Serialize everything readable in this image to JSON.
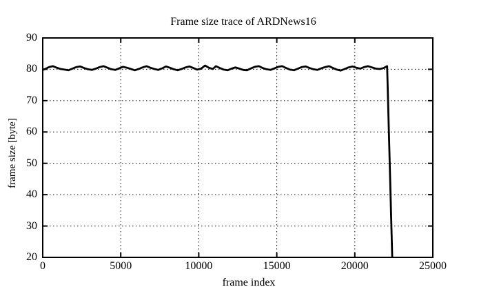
{
  "chart_data": {
    "type": "line",
    "title": "Frame size trace of ARDNews16",
    "xlabel": "frame index",
    "ylabel": "frame size [byte]",
    "xlim": [
      0,
      25000
    ],
    "ylim": [
      20,
      90
    ],
    "xticks": [
      0,
      5000,
      10000,
      15000,
      20000,
      25000
    ],
    "yticks": [
      20,
      30,
      40,
      50,
      60,
      70,
      80,
      90
    ],
    "grid": true,
    "legend": false,
    "line_color": "#000000",
    "grid_color": "#000000",
    "background": "#ffffff",
    "series": [
      {
        "name": "frame size",
        "points": [
          [
            0,
            79.8
          ],
          [
            150,
            80.1
          ],
          [
            400,
            80.7
          ],
          [
            650,
            81.0
          ],
          [
            900,
            80.5
          ],
          [
            1150,
            80.1
          ],
          [
            1400,
            79.9
          ],
          [
            1650,
            79.7
          ],
          [
            1900,
            80.2
          ],
          [
            2150,
            80.7
          ],
          [
            2400,
            80.9
          ],
          [
            2650,
            80.4
          ],
          [
            2900,
            80.0
          ],
          [
            3150,
            79.8
          ],
          [
            3400,
            80.2
          ],
          [
            3650,
            80.7
          ],
          [
            3900,
            81.0
          ],
          [
            4150,
            80.5
          ],
          [
            4400,
            80.0
          ],
          [
            4650,
            79.8
          ],
          [
            4900,
            80.3
          ],
          [
            5150,
            80.8
          ],
          [
            5400,
            80.5
          ],
          [
            5650,
            80.1
          ],
          [
            5900,
            79.7
          ],
          [
            6150,
            80.1
          ],
          [
            6400,
            80.6
          ],
          [
            6650,
            81.0
          ],
          [
            6900,
            80.5
          ],
          [
            7150,
            80.1
          ],
          [
            7400,
            79.8
          ],
          [
            7650,
            80.3
          ],
          [
            7900,
            80.9
          ],
          [
            8150,
            80.5
          ],
          [
            8400,
            80.0
          ],
          [
            8650,
            79.7
          ],
          [
            8900,
            80.1
          ],
          [
            9150,
            80.6
          ],
          [
            9400,
            80.9
          ],
          [
            9650,
            80.4
          ],
          [
            9900,
            79.9
          ],
          [
            10150,
            80.2
          ],
          [
            10400,
            81.2
          ],
          [
            10650,
            80.5
          ],
          [
            10900,
            80.1
          ],
          [
            11100,
            81.0
          ],
          [
            11350,
            80.4
          ],
          [
            11600,
            79.9
          ],
          [
            11850,
            79.7
          ],
          [
            12100,
            80.2
          ],
          [
            12350,
            80.6
          ],
          [
            12600,
            80.2
          ],
          [
            12850,
            79.8
          ],
          [
            13100,
            79.7
          ],
          [
            13350,
            80.3
          ],
          [
            13600,
            80.8
          ],
          [
            13850,
            81.0
          ],
          [
            14100,
            80.4
          ],
          [
            14350,
            80.0
          ],
          [
            14600,
            79.8
          ],
          [
            14850,
            80.3
          ],
          [
            15100,
            80.8
          ],
          [
            15350,
            81.0
          ],
          [
            15600,
            80.4
          ],
          [
            15850,
            79.9
          ],
          [
            16100,
            79.7
          ],
          [
            16350,
            80.2
          ],
          [
            16600,
            80.7
          ],
          [
            16850,
            80.9
          ],
          [
            17100,
            80.4
          ],
          [
            17350,
            80.0
          ],
          [
            17600,
            79.8
          ],
          [
            17850,
            80.3
          ],
          [
            18100,
            80.7
          ],
          [
            18350,
            81.0
          ],
          [
            18600,
            80.4
          ],
          [
            18850,
            79.9
          ],
          [
            19100,
            79.6
          ],
          [
            19350,
            80.1
          ],
          [
            19600,
            80.6
          ],
          [
            19850,
            80.9
          ],
          [
            20100,
            80.5
          ],
          [
            20350,
            80.2
          ],
          [
            20600,
            80.7
          ],
          [
            20850,
            81.0
          ],
          [
            21100,
            80.6
          ],
          [
            21350,
            80.2
          ],
          [
            21600,
            80.1
          ],
          [
            21850,
            80.4
          ],
          [
            22070,
            81.0
          ],
          [
            22400,
            20.0
          ]
        ]
      }
    ]
  }
}
